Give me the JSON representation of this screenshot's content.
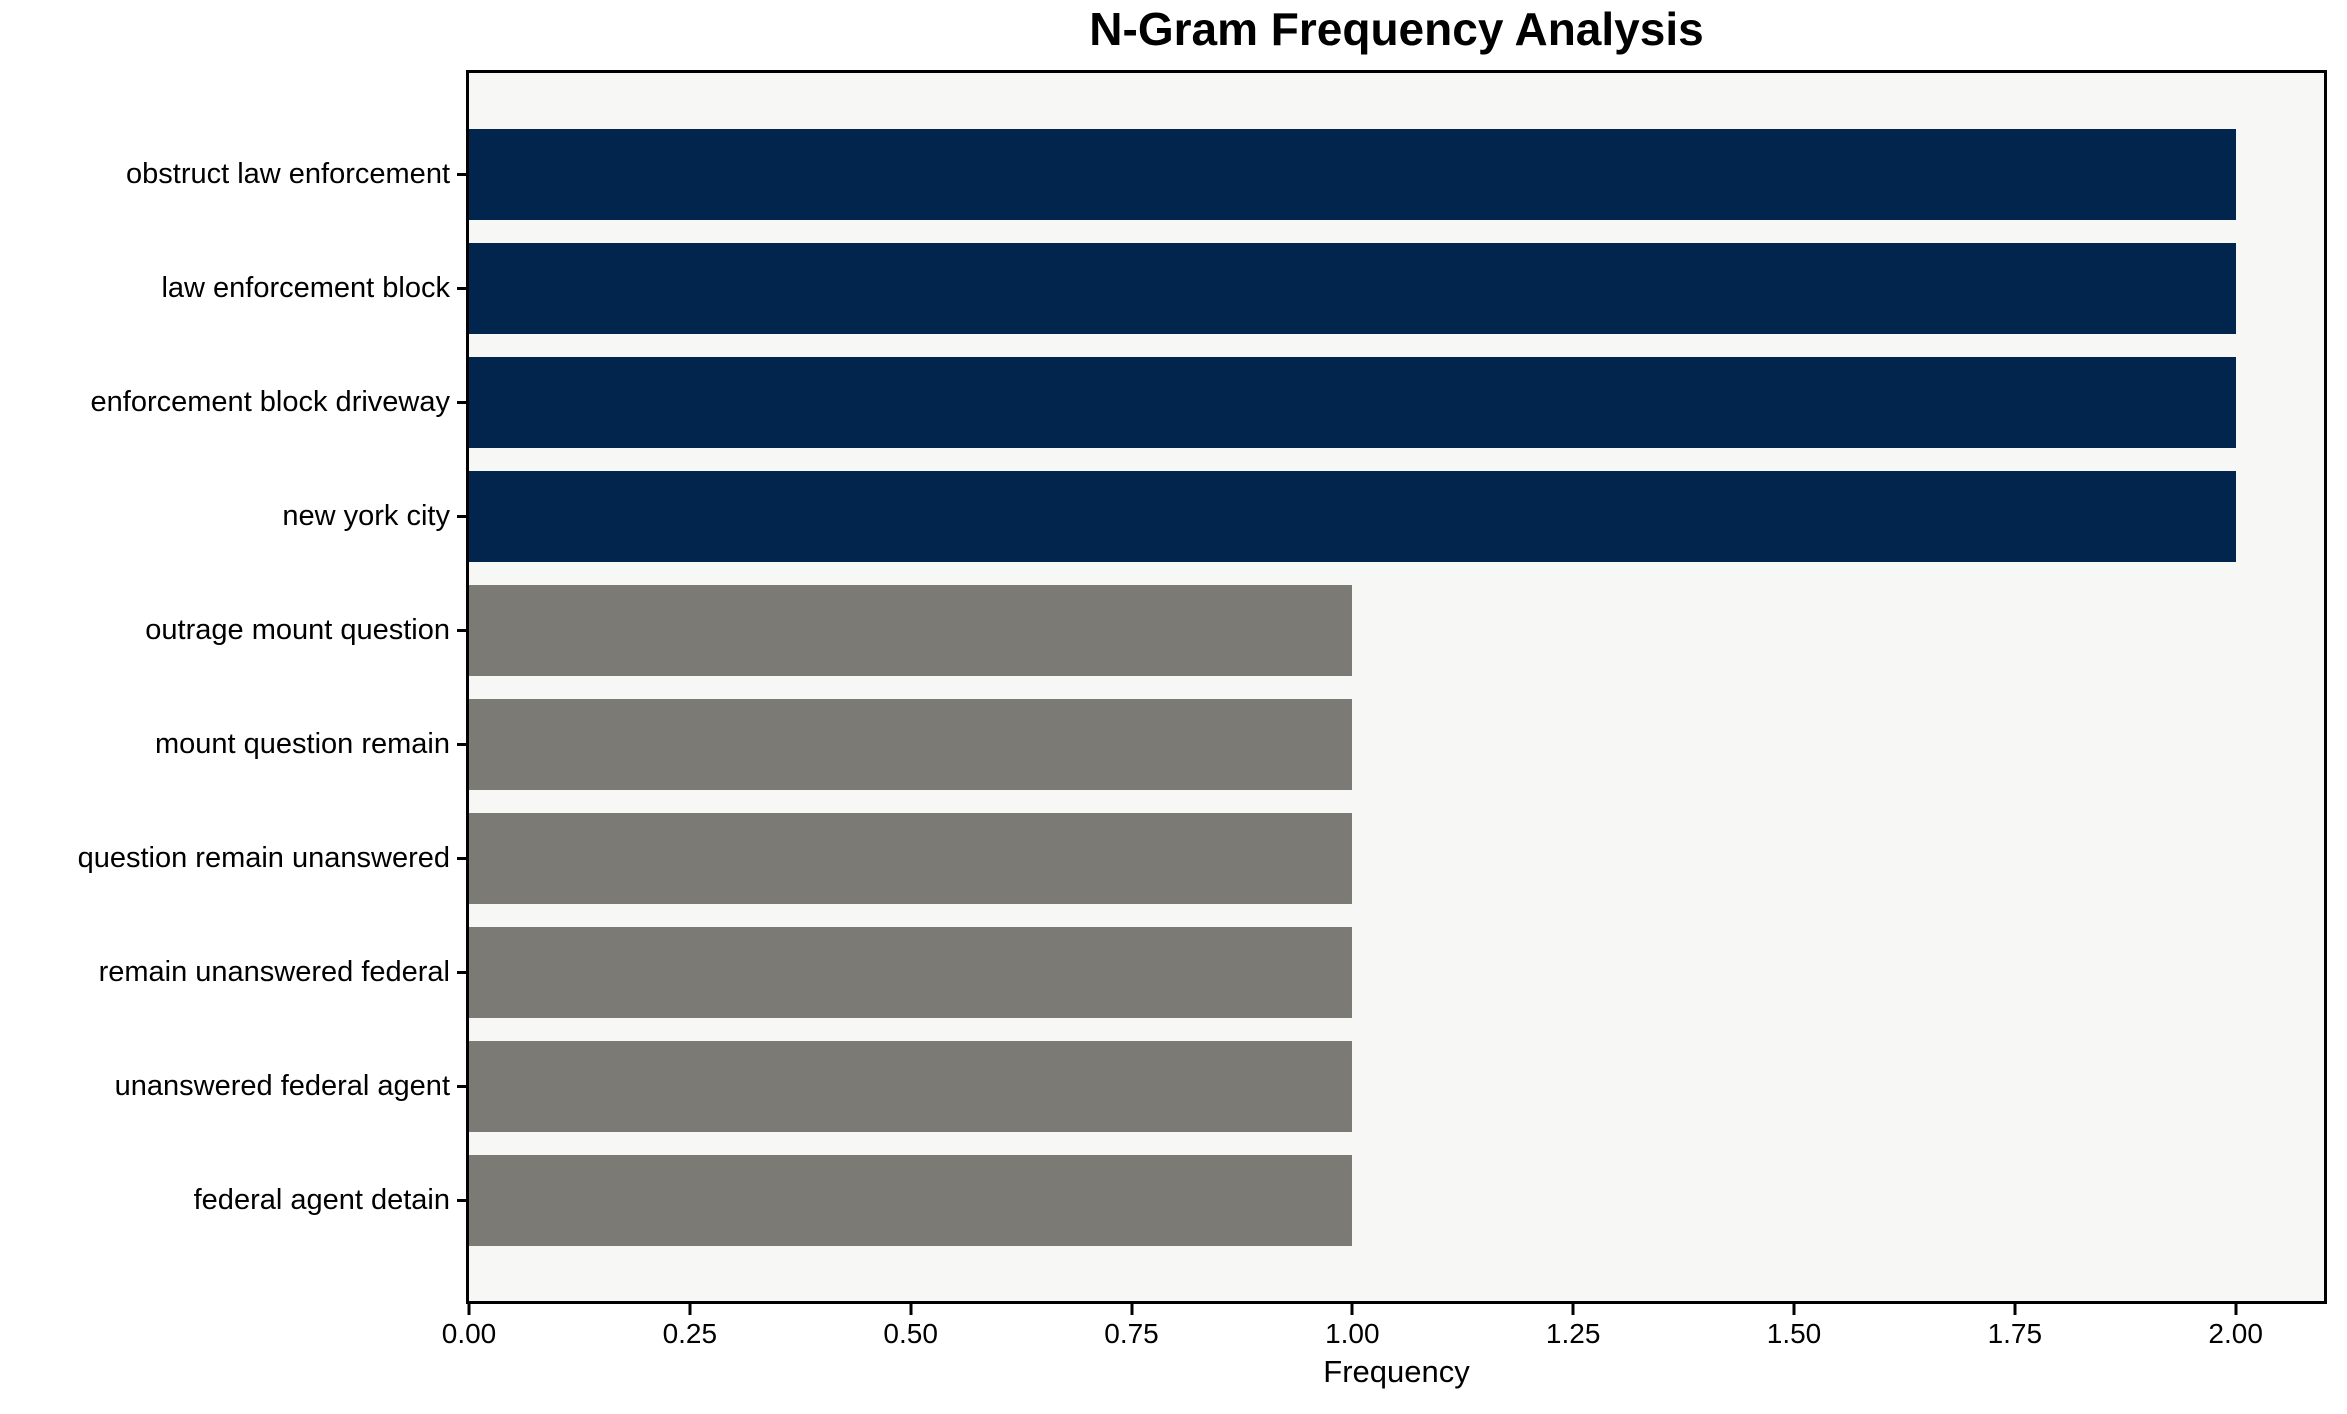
{
  "chart_data": {
    "type": "bar",
    "orientation": "horizontal",
    "title": "N-Gram Frequency Analysis",
    "xlabel": "Frequency",
    "ylabel": "",
    "categories": [
      "obstruct law enforcement",
      "law enforcement block",
      "enforcement block driveway",
      "new york city",
      "outrage mount question",
      "mount question remain",
      "question remain unanswered",
      "remain unanswered federal",
      "unanswered federal agent",
      "federal agent detain"
    ],
    "values": [
      2,
      2,
      2,
      2,
      1,
      1,
      1,
      1,
      1,
      1
    ],
    "bar_colors": [
      "#02254e",
      "#02254e",
      "#02254e",
      "#02254e",
      "#7b7a75",
      "#7b7a75",
      "#7b7a75",
      "#7b7a75",
      "#7b7a75",
      "#7b7a75"
    ],
    "xlim": [
      0,
      2.1
    ],
    "xticks": [
      0,
      0.25,
      0.5,
      0.75,
      1.0,
      1.25,
      1.5,
      1.75,
      2.0
    ],
    "xtick_labels": [
      "0.00",
      "0.25",
      "0.50",
      "0.75",
      "1.00",
      "1.25",
      "1.50",
      "1.75",
      "2.00"
    ],
    "grid": false,
    "legend": null,
    "plot_background": "#f7f7f6",
    "figure_background": "#ffffff",
    "axis_color": "#000000"
  }
}
